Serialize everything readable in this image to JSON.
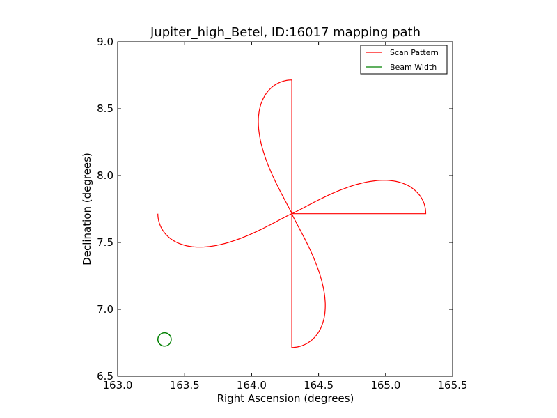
{
  "chart_data": {
    "type": "line",
    "title": "Jupiter_high_Betel, ID:16017 mapping path",
    "xlabel": "Right Ascension (degrees)",
    "ylabel": "Declination (degrees)",
    "xlim": [
      163.0,
      165.5
    ],
    "ylim": [
      6.5,
      9.0
    ],
    "xticks": [
      163.0,
      163.5,
      164.0,
      164.5,
      165.0,
      165.5
    ],
    "xtick_labels": [
      "163.0",
      "163.5",
      "164.0",
      "164.5",
      "165.0",
      "165.5"
    ],
    "yticks": [
      6.5,
      7.0,
      7.5,
      8.0,
      8.5,
      9.0
    ],
    "ytick_labels": [
      "6.5",
      "7.0",
      "7.5",
      "8.0",
      "8.5",
      "9.0"
    ],
    "grid": false,
    "legend_position": "upper right",
    "series": [
      {
        "name": "Scan Pattern",
        "color": "#ff0000",
        "kind": "daisy-scan",
        "center": [
          164.3,
          7.715
        ],
        "petals": 4,
        "petal_length_deg": 1.0,
        "petal_half_width_deg": 0.27
      },
      {
        "name": "Beam Width",
        "color": "#008000",
        "kind": "circle",
        "center": [
          163.35,
          6.775
        ],
        "radius_deg": 0.05
      }
    ]
  }
}
